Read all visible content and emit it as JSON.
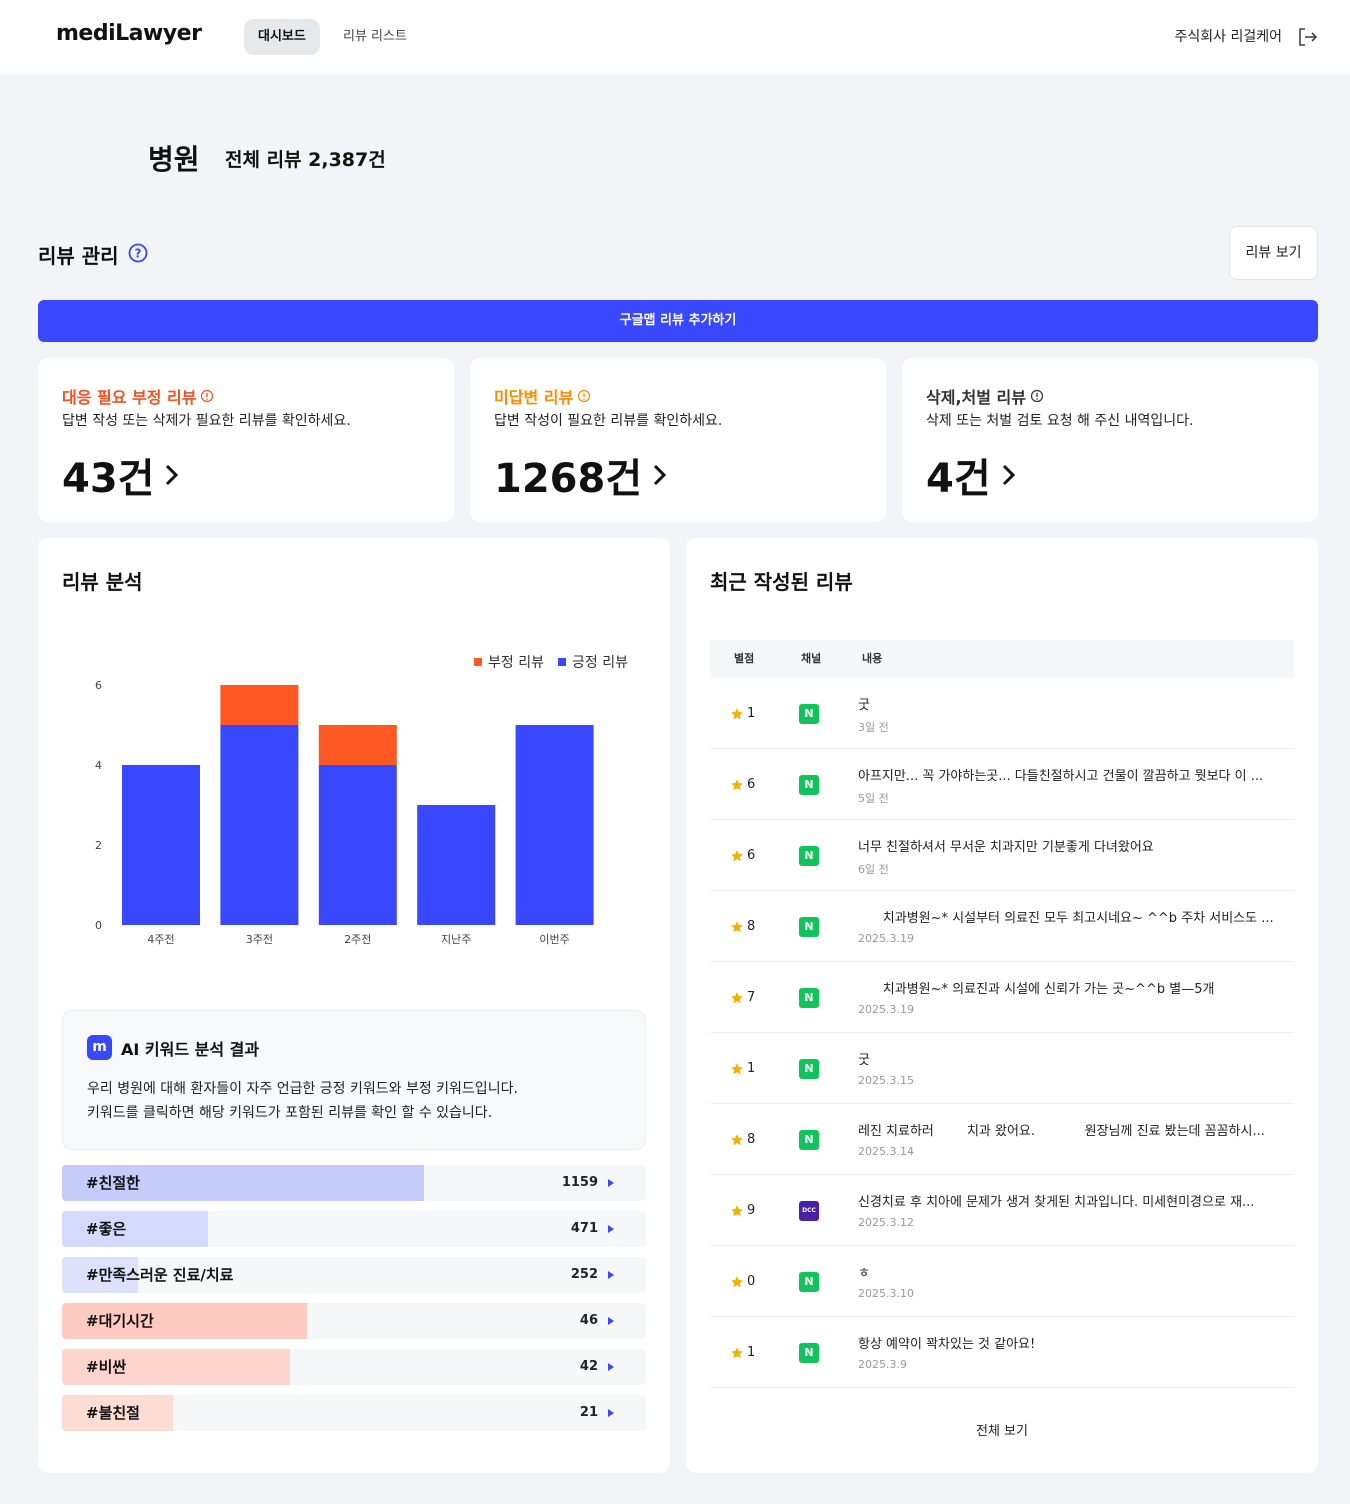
{
  "header": {
    "logo": "mediLawyer",
    "tabs": [
      {
        "label": "대시보드",
        "active": true
      },
      {
        "label": "리뷰 리스트",
        "active": false
      }
    ],
    "company": "주식회사 리걸케어"
  },
  "hospital": {
    "name": "병원",
    "total_reviews": "전체 리뷰 2,387건"
  },
  "review_management": {
    "title": "리뷰 관리",
    "view_button": "리뷰 보기",
    "google_button": "구글맵 리뷰 추가하기"
  },
  "stats": [
    {
      "title": "대응 필요 부정 리뷰",
      "desc": "답변 작성 또는 삭제가 필요한 리뷰를 확인하세요.",
      "count": "43건",
      "color": "#f4511e"
    },
    {
      "title": "미답변 리뷰",
      "desc": "답변 작성이 필요한 리뷰를 확인하세요.",
      "count": "1268건",
      "color": "#ff8a00"
    },
    {
      "title": "삭제,처벌 리뷰",
      "desc": "삭제 또는 처벌 검토 요청 해 주신 내역입니다.",
      "count": "4건",
      "color": "#333333"
    }
  ],
  "analysis": {
    "title": "리뷰 분석",
    "legend": {
      "negative": "부정 리뷰",
      "positive": "긍정 리뷰"
    },
    "colors": {
      "negative": "#ff5722",
      "positive": "#3947ff"
    }
  },
  "chart_data": {
    "type": "bar",
    "stacked": true,
    "categories": [
      "4주전",
      "3주전",
      "2주전",
      "지난주",
      "이번주"
    ],
    "series": [
      {
        "name": "긍정 리뷰",
        "values": [
          4,
          5,
          4,
          3,
          5
        ]
      },
      {
        "name": "부정 리뷰",
        "values": [
          0,
          1,
          1,
          0,
          0
        ]
      }
    ],
    "ylim": [
      0,
      6
    ],
    "yticks": [
      "0",
      "2",
      "4",
      "6"
    ],
    "legend": "top-right"
  },
  "ai": {
    "logo": "m",
    "title": "AI 키워드 분석 결과",
    "desc1": "우리 병원에 대해 환자들이 자주 언급한 긍정 키워드와 부정 키워드입니다.",
    "desc2": "키워드를 클릭하면 해당 키워드가 포함된 리뷰를 확인 할 수 있습니다."
  },
  "keywords": [
    {
      "label": "#친절한",
      "count": "1159",
      "fill": 0.62,
      "color": "#c5cbfa"
    },
    {
      "label": "#좋은",
      "count": "471",
      "fill": 0.25,
      "color": "#d5d9fc"
    },
    {
      "label": "#만족스러운 진료/치료",
      "count": "252",
      "fill": 0.13,
      "color": "#dde1fc"
    },
    {
      "label": "#대기시간",
      "count": "46",
      "fill": 0.42,
      "color": "#fdcbc0"
    },
    {
      "label": "#비싼",
      "count": "42",
      "fill": 0.39,
      "color": "#fdd5cc"
    },
    {
      "label": "#불친절",
      "count": "21",
      "fill": 0.19,
      "color": "#fddcd4"
    }
  ],
  "recent": {
    "title": "최근 작성된 리뷰",
    "headers": {
      "rating": "별점",
      "channel": "채널",
      "content": "내용"
    },
    "rows": [
      {
        "rating": "1",
        "channel": "N",
        "channel_type": "naver",
        "text": "굿",
        "date": "3일 전"
      },
      {
        "rating": "6",
        "channel": "N",
        "channel_type": "naver",
        "text": "아프지만... 꼭 가야하는곳... 다들친절하시고 건물이 깔끔하고 뭣보다 이 ...",
        "date": "5일 전"
      },
      {
        "rating": "6",
        "channel": "N",
        "channel_type": "naver",
        "text": "너무 친절하셔서 무서운 치과지만 기분좋게 다녀왔어요",
        "date": "6일 전"
      },
      {
        "rating": "8",
        "channel": "N",
        "channel_type": "naver",
        "text": "      치과병원~* 시설부터 의료진 모두 최고시네요~ ^^b 주차 서비스도 ...",
        "date": "2025.3.19"
      },
      {
        "rating": "7",
        "channel": "N",
        "channel_type": "naver",
        "text": "      치과병원~* 의료진과 시설에 신뢰가 가는 곳~^^b 별—5개",
        "date": "2025.3.19"
      },
      {
        "rating": "1",
        "channel": "N",
        "channel_type": "naver",
        "text": "굿",
        "date": "2025.3.15"
      },
      {
        "rating": "8",
        "channel": "N",
        "channel_type": "naver",
        "text": "레진 치료하러        치과 왔어요.            원장님께 진료 봤는데 꼼꼼하시...",
        "date": "2025.3.14"
      },
      {
        "rating": "9",
        "channel": "DCC",
        "channel_type": "dcc",
        "text": "신경치료 후 치아에 문제가 생겨 찾게된 치과입니다. 미세현미경으로 재...",
        "date": "2025.3.12"
      },
      {
        "rating": "0",
        "channel": "N",
        "channel_type": "naver",
        "text": "ㅎ",
        "date": "2025.3.10"
      },
      {
        "rating": "1",
        "channel": "N",
        "channel_type": "naver",
        "text": "항상 예약이 꽉차있는 것 같아요!",
        "date": "2025.3.9"
      }
    ],
    "view_all": "전체 보기"
  }
}
